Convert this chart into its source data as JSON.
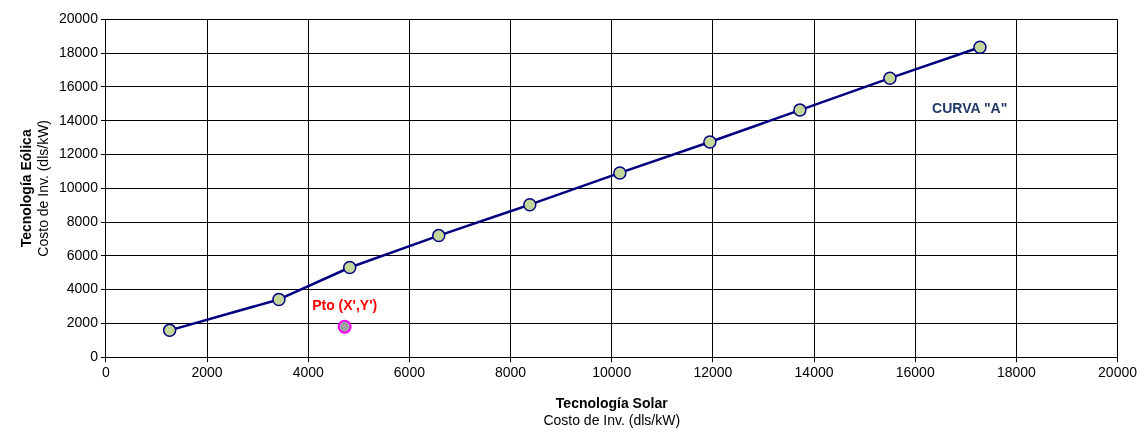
{
  "chart_data": {
    "type": "line",
    "xlabel": "Tecnología Solar\nCosto de Inv. (dls/kW)",
    "ylabel": "Tecnología Eólica\nCosto de Inv. (dls/kW)",
    "series": [
      {
        "color": "#000080",
        "x": [
          1260,
          3420,
          4820,
          6580,
          8380,
          10160,
          11940,
          13720,
          15500,
          17280
        ],
        "values": [
          1590,
          3420,
          5310,
          7200,
          9030,
          10910,
          12740,
          14630,
          16520,
          18350
        ]
      },
      {
        "type": "scatter",
        "color": "#ff00ff",
        "x": [
          4720
        ],
        "values": [
          1800
        ]
      }
    ],
    "annotations": [
      "CURVA \"A\"",
      "Pto (X',Y')"
    ],
    "xlim": [
      0,
      20000
    ],
    "xticks": [
      0,
      2000,
      4000,
      6000,
      8000,
      10000,
      12000,
      14000,
      16000,
      18000,
      20000
    ],
    "ylim": [
      0,
      20000
    ],
    "yticks": [
      0,
      2000,
      4000,
      6000,
      8000,
      10000,
      12000,
      14000,
      16000,
      18000,
      20000
    ],
    "grid": true,
    "legend": false,
    "marker": "circle",
    "line_style": "solid"
  }
}
